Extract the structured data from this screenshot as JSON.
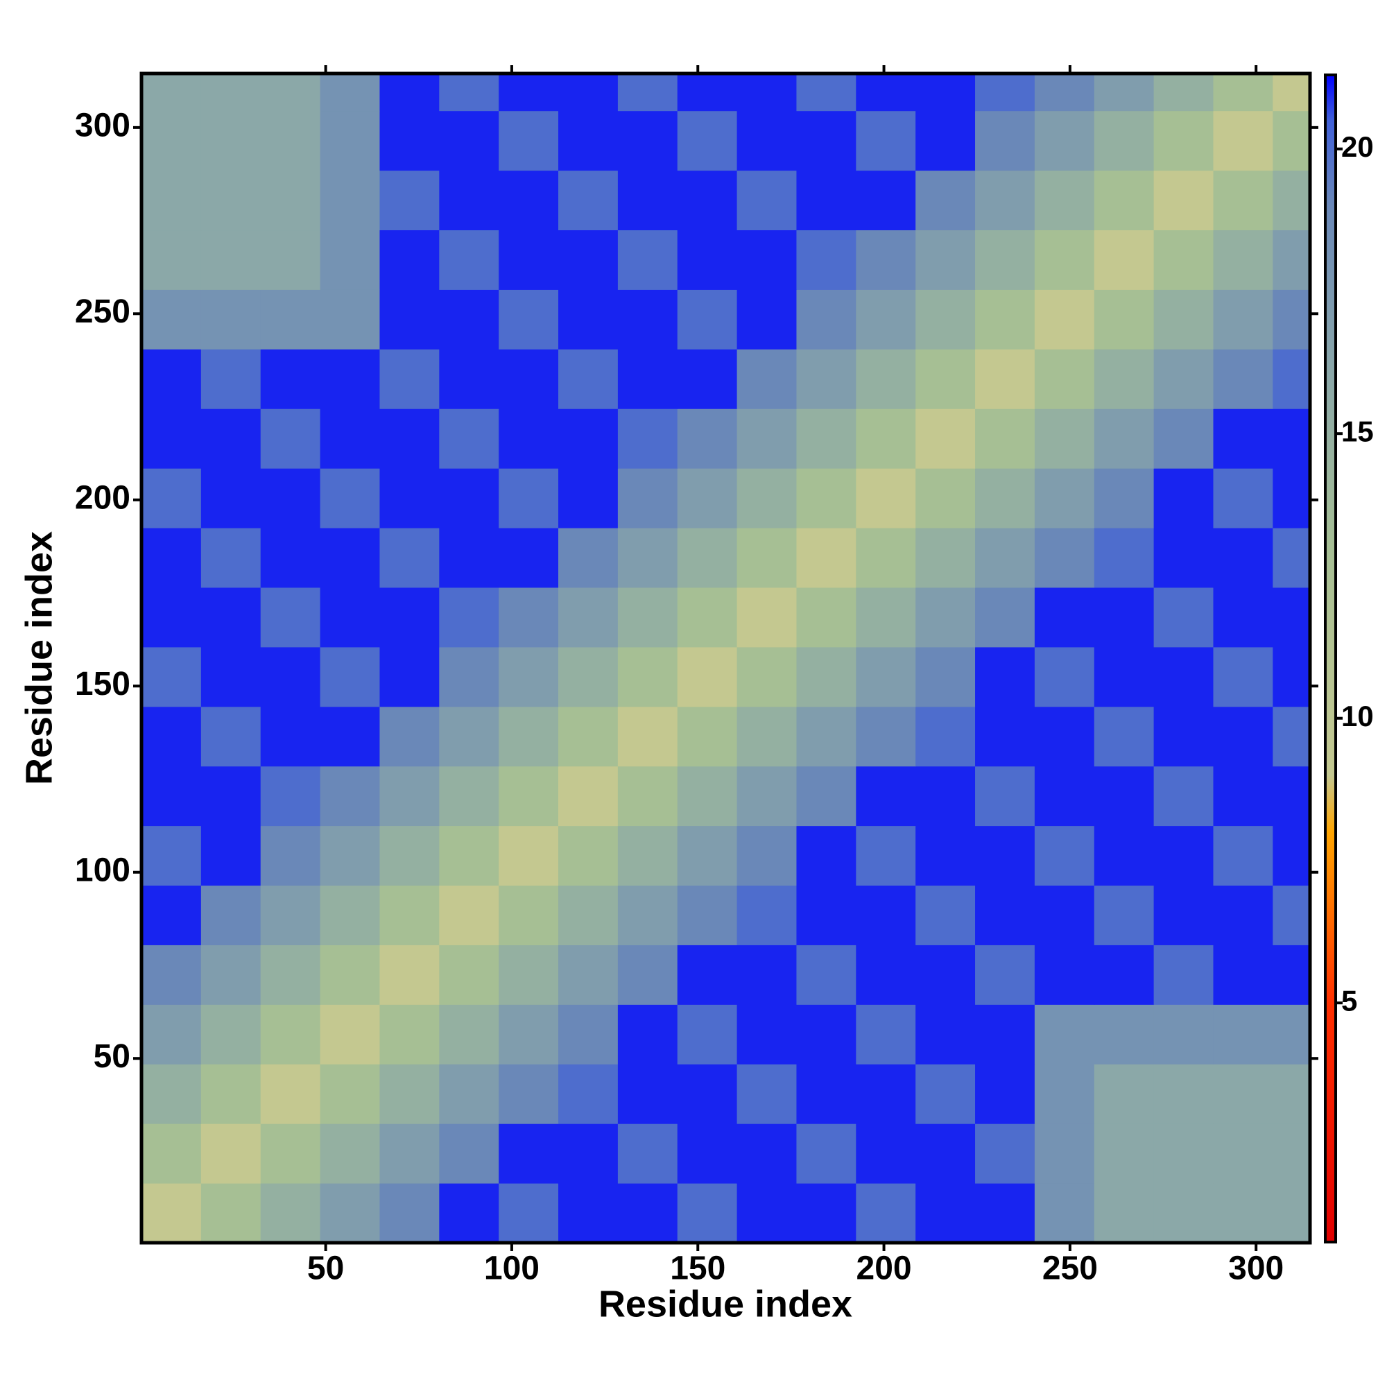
{
  "chart_data": {
    "type": "heatmap",
    "xlabel": "Residue index",
    "ylabel": "Residue index",
    "xlim": [
      0.5,
      314.5
    ],
    "ylim": [
      0.5,
      314.5
    ],
    "xticks": [
      50,
      100,
      150,
      200,
      250,
      300
    ],
    "yticks": [
      50,
      100,
      150,
      200,
      250,
      300
    ],
    "xbins": [
      0.5,
      16.5,
      32.5,
      48.5,
      64.5,
      80.5,
      96.5,
      112.5,
      128.5,
      144.5,
      160.5,
      176.5,
      192.5,
      208.5,
      224.5,
      240.5,
      256.5,
      272.5,
      288.5,
      304.5,
      314.5
    ],
    "ybins": [
      0.5,
      16.5,
      32.5,
      48.5,
      64.5,
      80.5,
      96.5,
      112.5,
      128.5,
      144.5,
      160.5,
      176.5,
      192.5,
      208.5,
      224.5,
      240.5,
      256.5,
      272.5,
      288.5,
      304.5,
      314.5
    ],
    "z": [
      [
        9,
        13,
        15,
        17,
        19,
        21,
        20,
        21,
        21,
        20,
        21,
        21,
        20,
        21,
        21,
        18,
        16,
        16,
        16,
        16
      ],
      [
        13,
        9,
        13,
        15,
        17,
        19,
        21,
        21,
        20,
        21,
        21,
        20,
        21,
        21,
        20,
        18,
        16,
        16,
        16,
        16
      ],
      [
        15,
        13,
        9,
        13,
        15,
        17,
        19,
        20,
        21,
        21,
        20,
        21,
        21,
        20,
        21,
        18,
        16,
        16,
        16,
        16
      ],
      [
        17,
        15,
        13,
        9,
        13,
        15,
        17,
        19,
        21,
        20,
        21,
        21,
        20,
        21,
        21,
        18,
        18,
        18,
        18,
        18
      ],
      [
        19,
        17,
        15,
        13,
        9,
        13,
        15,
        17,
        19,
        21,
        21,
        20,
        21,
        21,
        20,
        21,
        21,
        20,
        21,
        21
      ],
      [
        21,
        19,
        17,
        15,
        13,
        9,
        13,
        15,
        17,
        19,
        20,
        21,
        21,
        20,
        21,
        21,
        20,
        21,
        21,
        20
      ],
      [
        20,
        21,
        19,
        17,
        15,
        13,
        9,
        13,
        15,
        17,
        19,
        21,
        20,
        21,
        21,
        20,
        21,
        21,
        20,
        21
      ],
      [
        21,
        21,
        20,
        19,
        17,
        15,
        13,
        9,
        13,
        15,
        17,
        19,
        21,
        21,
        20,
        21,
        21,
        20,
        21,
        21
      ],
      [
        21,
        20,
        21,
        21,
        19,
        17,
        15,
        13,
        9,
        13,
        15,
        17,
        19,
        20,
        21,
        21,
        20,
        21,
        21,
        20
      ],
      [
        20,
        21,
        21,
        20,
        21,
        19,
        17,
        15,
        13,
        9,
        13,
        15,
        17,
        19,
        21,
        20,
        21,
        21,
        20,
        21
      ],
      [
        21,
        21,
        20,
        21,
        21,
        20,
        19,
        17,
        15,
        13,
        9,
        13,
        15,
        17,
        19,
        21,
        21,
        20,
        21,
        21
      ],
      [
        21,
        20,
        21,
        21,
        20,
        21,
        21,
        19,
        17,
        15,
        13,
        9,
        13,
        15,
        17,
        19,
        20,
        21,
        21,
        20
      ],
      [
        20,
        21,
        21,
        20,
        21,
        21,
        20,
        21,
        19,
        17,
        15,
        13,
        9,
        13,
        15,
        17,
        19,
        21,
        20,
        21
      ],
      [
        21,
        21,
        20,
        21,
        21,
        20,
        21,
        21,
        20,
        19,
        17,
        15,
        13,
        9,
        13,
        15,
        17,
        19,
        21,
        21
      ],
      [
        21,
        20,
        21,
        21,
        20,
        21,
        21,
        20,
        21,
        21,
        19,
        17,
        15,
        13,
        9,
        13,
        15,
        17,
        19,
        20
      ],
      [
        18,
        18,
        18,
        18,
        21,
        21,
        20,
        21,
        21,
        20,
        21,
        19,
        17,
        15,
        13,
        9,
        13,
        15,
        17,
        19
      ],
      [
        16,
        16,
        16,
        18,
        21,
        20,
        21,
        21,
        20,
        21,
        21,
        20,
        19,
        17,
        15,
        13,
        9,
        13,
        15,
        17
      ],
      [
        16,
        16,
        16,
        18,
        20,
        21,
        21,
        20,
        21,
        21,
        20,
        21,
        21,
        19,
        17,
        15,
        13,
        9,
        13,
        15
      ],
      [
        16,
        16,
        16,
        18,
        21,
        21,
        20,
        21,
        21,
        20,
        21,
        21,
        20,
        21,
        19,
        17,
        15,
        13,
        9,
        13
      ],
      [
        16,
        16,
        16,
        18,
        21,
        20,
        21,
        21,
        20,
        21,
        21,
        20,
        21,
        21,
        20,
        19,
        17,
        15,
        13,
        9
      ]
    ],
    "zlim": [
      0.8,
      21.3
    ],
    "colorbar_ticks": [
      5,
      10,
      15,
      20
    ],
    "colorscale": [
      {
        "value": 0.8,
        "color": "#e00000"
      },
      {
        "value": 5,
        "color": "#ff3000"
      },
      {
        "value": 8,
        "color": "#ffa500"
      },
      {
        "value": 9,
        "color": "#c4c890"
      },
      {
        "value": 13,
        "color": "#a6bf94"
      },
      {
        "value": 16,
        "color": "#8ba8a8"
      },
      {
        "value": 19,
        "color": "#6a88b8"
      },
      {
        "value": 20.5,
        "color": "#4060d8"
      },
      {
        "value": 21.3,
        "color": "#0000ff"
      }
    ]
  }
}
